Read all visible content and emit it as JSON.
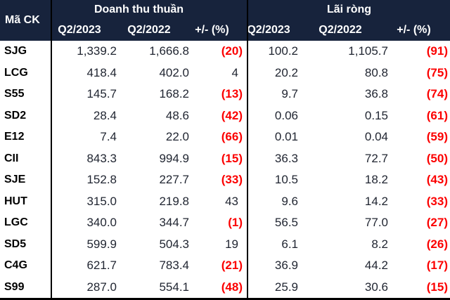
{
  "theme": {
    "header_bg": "#17233C",
    "header_text": "#FFFFFF",
    "body_bg": "#FFFFFF",
    "text": "#1F2430",
    "code_text": "#000000",
    "negative": "#FC0000",
    "divider": "#000000"
  },
  "table": {
    "header": {
      "code_col": "Mã CK",
      "group_revenue": "Doanh thu thuần",
      "group_profit": "Lãi ròng",
      "rev_q2_2023": "Q2/2023",
      "rev_q2_2022": "Q2/2022",
      "rev_change": "+/- (%)",
      "net_q2_2023": "Q2/2023",
      "net_q2_2022": "Q2/2022",
      "net_change": "+/- (%)"
    },
    "rows": [
      {
        "code": "SJG",
        "rev_2023": "1,339.2",
        "rev_2022": "1,666.8",
        "rev_chg": "(20)",
        "net_2023": "100.2",
        "net_2022": "1,105.7",
        "net_chg": "(91)"
      },
      {
        "code": "LCG",
        "rev_2023": "418.4",
        "rev_2022": "402.0",
        "rev_chg": "4",
        "net_2023": "20.2",
        "net_2022": "80.8",
        "net_chg": "(75)"
      },
      {
        "code": "S55",
        "rev_2023": "145.7",
        "rev_2022": "168.2",
        "rev_chg": "(13)",
        "net_2023": "9.7",
        "net_2022": "36.8",
        "net_chg": "(74)"
      },
      {
        "code": "SD2",
        "rev_2023": "28.4",
        "rev_2022": "48.6",
        "rev_chg": "(42)",
        "net_2023": "0.06",
        "net_2022": "0.15",
        "net_chg": "(61)"
      },
      {
        "code": "E12",
        "rev_2023": "7.4",
        "rev_2022": "22.0",
        "rev_chg": "(66)",
        "net_2023": "0.01",
        "net_2022": "0.04",
        "net_chg": "(59)"
      },
      {
        "code": "CII",
        "rev_2023": "843.3",
        "rev_2022": "994.9",
        "rev_chg": "(15)",
        "net_2023": "36.3",
        "net_2022": "72.7",
        "net_chg": "(50)"
      },
      {
        "code": "SJE",
        "rev_2023": "152.8",
        "rev_2022": "227.7",
        "rev_chg": "(33)",
        "net_2023": "10.5",
        "net_2022": "18.2",
        "net_chg": "(43)"
      },
      {
        "code": "HUT",
        "rev_2023": "315.0",
        "rev_2022": "219.8",
        "rev_chg": "43",
        "net_2023": "9.6",
        "net_2022": "14.2",
        "net_chg": "(33)"
      },
      {
        "code": "LGC",
        "rev_2023": "340.0",
        "rev_2022": "344.7",
        "rev_chg": "(1)",
        "net_2023": "56.5",
        "net_2022": "77.0",
        "net_chg": "(27)"
      },
      {
        "code": "SD5",
        "rev_2023": "599.9",
        "rev_2022": "504.3",
        "rev_chg": "19",
        "net_2023": "6.1",
        "net_2022": "8.2",
        "net_chg": "(26)"
      },
      {
        "code": "C4G",
        "rev_2023": "621.7",
        "rev_2022": "783.4",
        "rev_chg": "(21)",
        "net_2023": "36.9",
        "net_2022": "44.2",
        "net_chg": "(17)"
      },
      {
        "code": "S99",
        "rev_2023": "287.0",
        "rev_2022": "554.1",
        "rev_chg": "(48)",
        "net_2023": "25.9",
        "net_2022": "30.6",
        "net_chg": "(15)"
      }
    ]
  },
  "chart_data": {
    "type": "table",
    "title": "",
    "column_groups": [
      "Doanh thu thuần",
      "Lãi ròng"
    ],
    "columns": [
      "Mã CK",
      "Doanh thu thuần Q2/2023",
      "Doanh thu thuần Q2/2022",
      "Doanh thu thuần +/- (%)",
      "Lãi ròng Q2/2023",
      "Lãi ròng Q2/2022",
      "Lãi ròng +/- (%)"
    ],
    "rows": [
      [
        "SJG",
        1339.2,
        1666.8,
        -20,
        100.2,
        1105.7,
        -91
      ],
      [
        "LCG",
        418.4,
        402.0,
        4,
        20.2,
        80.8,
        -75
      ],
      [
        "S55",
        145.7,
        168.2,
        -13,
        9.7,
        36.8,
        -74
      ],
      [
        "SD2",
        28.4,
        48.6,
        -42,
        0.06,
        0.15,
        -61
      ],
      [
        "E12",
        7.4,
        22.0,
        -66,
        0.01,
        0.04,
        -59
      ],
      [
        "CII",
        843.3,
        994.9,
        -15,
        36.3,
        72.7,
        -50
      ],
      [
        "SJE",
        152.8,
        227.7,
        -33,
        10.5,
        18.2,
        -43
      ],
      [
        "HUT",
        315.0,
        219.8,
        43,
        9.6,
        14.2,
        -33
      ],
      [
        "LGC",
        340.0,
        344.7,
        -1,
        56.5,
        77.0,
        -27
      ],
      [
        "SD5",
        599.9,
        504.3,
        19,
        6.1,
        8.2,
        -26
      ],
      [
        "C4G",
        621.7,
        783.4,
        -21,
        36.9,
        44.2,
        -17
      ],
      [
        "S99",
        287.0,
        554.1,
        -48,
        25.9,
        30.6,
        -15
      ]
    ],
    "notes": "Negative percentage changes shown in red parentheses"
  }
}
